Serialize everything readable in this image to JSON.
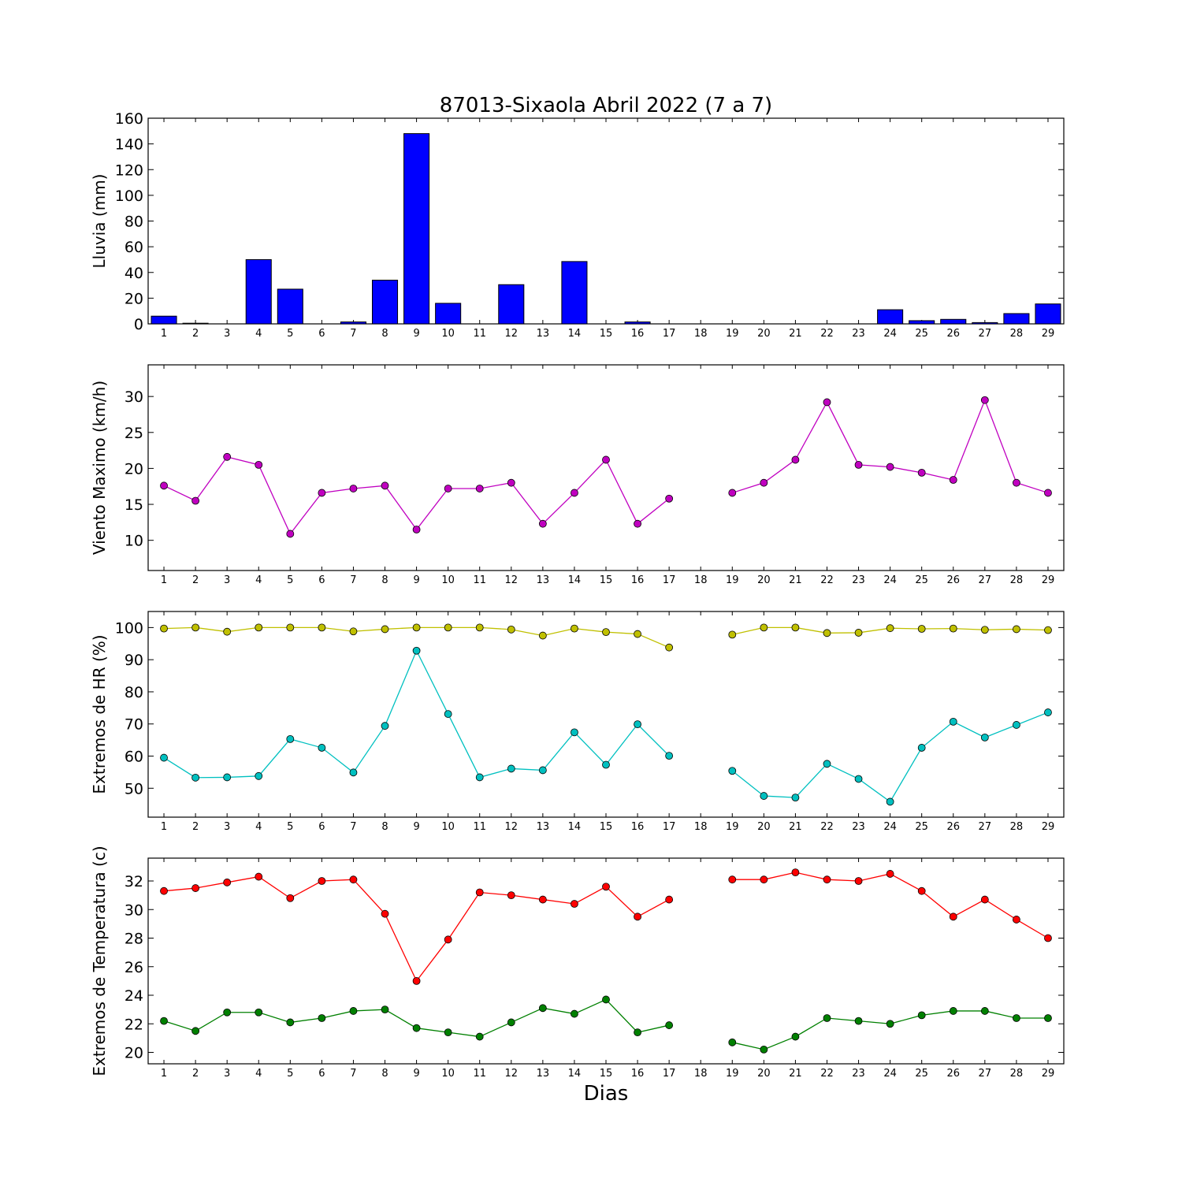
{
  "figure": {
    "title": "87013-Sixaola Abril 2022  (7 a 7)",
    "xlabel": "Dias"
  },
  "chart_data": [
    {
      "type": "bar",
      "ylabel": "Lluvia (mm)",
      "categories": [
        1,
        2,
        3,
        4,
        5,
        6,
        7,
        8,
        9,
        10,
        11,
        12,
        13,
        14,
        15,
        16,
        17,
        18,
        19,
        20,
        21,
        22,
        23,
        24,
        25,
        26,
        27,
        28,
        29
      ],
      "values": [
        6,
        0.5,
        0,
        50,
        27,
        0,
        1.5,
        34,
        148,
        16,
        0,
        30.5,
        0,
        48.5,
        0,
        1.5,
        0,
        0,
        0,
        0,
        0,
        0,
        0,
        11,
        2.5,
        3.5,
        1,
        8,
        15.5
      ],
      "ylim": [
        0,
        160
      ],
      "yticks": [
        0,
        20,
        40,
        60,
        80,
        100,
        120,
        140,
        160
      ],
      "xlim": [
        0.5,
        29.5
      ],
      "color": "#0000ff"
    },
    {
      "type": "line",
      "ylabel": "Viento Maximo (km/h)",
      "x": [
        1,
        2,
        3,
        4,
        5,
        6,
        7,
        8,
        9,
        10,
        11,
        12,
        13,
        14,
        15,
        16,
        17,
        18,
        19,
        20,
        21,
        22,
        23,
        24,
        25,
        26,
        27,
        28,
        29
      ],
      "series": [
        {
          "color": "#c000c0",
          "values": [
            17.6,
            15.5,
            21.6,
            20.5,
            10.9,
            16.6,
            17.2,
            17.6,
            11.5,
            17.2,
            17.2,
            18,
            12.3,
            16.6,
            21.2,
            12.3,
            15.8,
            null,
            16.6,
            18,
            21.2,
            29.2,
            20.5,
            20.2,
            19.4,
            18.4,
            29.5,
            18,
            16.6
          ]
        }
      ],
      "ylim": [
        5.8,
        34.4
      ],
      "yticks": [
        10,
        15,
        20,
        25,
        30
      ],
      "xticks": [
        1,
        2,
        3,
        4,
        5,
        6,
        7,
        8,
        9,
        10,
        11,
        12,
        13,
        14,
        15,
        16,
        17,
        18,
        19,
        20,
        21,
        22,
        23,
        24,
        25,
        26,
        27,
        28,
        29
      ],
      "xlim": [
        0.5,
        29.5
      ]
    },
    {
      "type": "line",
      "ylabel": "Extremos de HR (%)",
      "x": [
        1,
        2,
        3,
        4,
        5,
        6,
        7,
        8,
        9,
        10,
        11,
        12,
        13,
        14,
        15,
        16,
        17,
        18,
        19,
        20,
        21,
        22,
        23,
        24,
        25,
        26,
        27,
        28,
        29
      ],
      "series": [
        {
          "color": "#c0c000",
          "values": [
            99.7,
            100,
            98.7,
            100,
            100,
            100,
            98.8,
            99.5,
            100,
            100,
            100,
            99.4,
            97.5,
            99.7,
            98.6,
            98,
            93.8,
            null,
            97.8,
            100,
            100,
            98.3,
            98.4,
            99.8,
            99.6,
            99.7,
            99.3,
            99.5,
            99.2
          ]
        },
        {
          "color": "#00c0c0",
          "values": [
            59.5,
            53.3,
            53.4,
            53.8,
            65.3,
            62.6,
            54.9,
            69.4,
            92.8,
            73.1,
            53.4,
            56.1,
            55.6,
            67.4,
            57.3,
            69.9,
            60.1,
            null,
            55.4,
            47.6,
            47.1,
            57.6,
            52.9,
            45.8,
            62.6,
            70.7,
            65.8,
            69.7,
            73.6
          ]
        }
      ],
      "ylim": [
        41,
        105
      ],
      "yticks": [
        50,
        60,
        70,
        80,
        90,
        100
      ],
      "xticks": [
        1,
        2,
        3,
        4,
        5,
        6,
        7,
        8,
        9,
        10,
        11,
        12,
        13,
        14,
        15,
        16,
        17,
        18,
        19,
        20,
        21,
        22,
        23,
        24,
        25,
        26,
        27,
        28,
        29
      ],
      "xlim": [
        0.5,
        29.5
      ]
    },
    {
      "type": "line",
      "ylabel": "Extremos de Temperatura (c)",
      "x": [
        1,
        2,
        3,
        4,
        5,
        6,
        7,
        8,
        9,
        10,
        11,
        12,
        13,
        14,
        15,
        16,
        17,
        18,
        19,
        20,
        21,
        22,
        23,
        24,
        25,
        26,
        27,
        28,
        29
      ],
      "series": [
        {
          "color": "#ff0000",
          "values": [
            31.3,
            31.5,
            31.9,
            32.3,
            30.8,
            32,
            32.1,
            29.7,
            25,
            27.9,
            31.2,
            31,
            30.7,
            30.4,
            31.6,
            29.5,
            30.7,
            null,
            32.1,
            32.1,
            32.6,
            32.1,
            32,
            32.5,
            31.3,
            29.5,
            30.7,
            29.3,
            28
          ]
        },
        {
          "color": "#008000",
          "values": [
            22.2,
            21.5,
            22.8,
            22.8,
            22.1,
            22.4,
            22.9,
            23,
            21.7,
            21.4,
            21.1,
            22.1,
            23.1,
            22.7,
            23.7,
            21.4,
            21.9,
            null,
            20.7,
            20.2,
            21.1,
            22.4,
            22.2,
            22,
            22.6,
            22.9,
            22.9,
            22.4,
            22.4
          ]
        }
      ],
      "ylim": [
        19.2,
        33.6
      ],
      "yticks": [
        20,
        22,
        24,
        26,
        28,
        30,
        32
      ],
      "xticks": [
        1,
        2,
        3,
        4,
        5,
        6,
        7,
        8,
        9,
        10,
        11,
        12,
        13,
        14,
        15,
        16,
        17,
        18,
        19,
        20,
        21,
        22,
        23,
        24,
        25,
        26,
        27,
        28,
        29
      ],
      "xlim": [
        0.5,
        29.5
      ]
    }
  ]
}
